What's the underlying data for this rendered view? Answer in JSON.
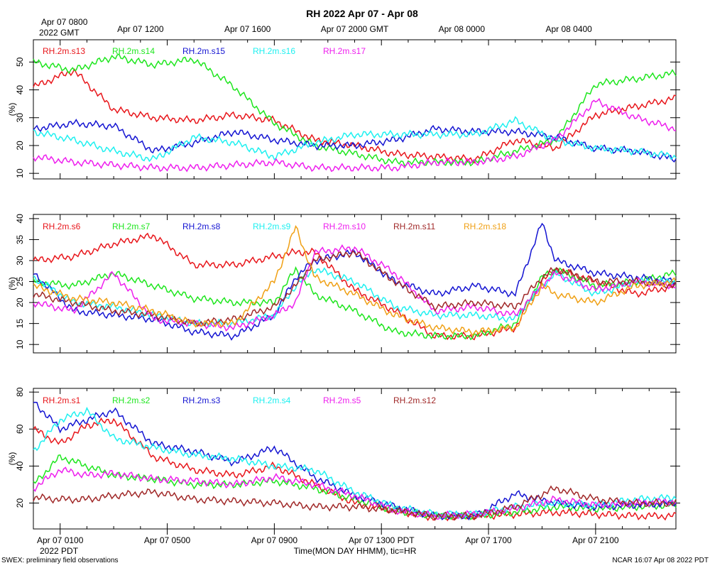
{
  "title": "RH 2022 Apr 07 - Apr 08",
  "top_axis": {
    "first_label": "Apr 07 0800",
    "first_label_sub": "2022 GMT",
    "labels": [
      "Apr 07 1200",
      "Apr 07 1600",
      "Apr 07 2000 GMT",
      "Apr 08 0000",
      "Apr 08 0400"
    ]
  },
  "bottom_axis": {
    "labels": [
      "Apr 07 0100",
      "Apr 07 0500",
      "Apr 07 0900",
      "Apr 07 1300 PDT",
      "Apr 07 1700",
      "Apr 07 2100"
    ],
    "first_label_sub": "2022 PDT",
    "xlabel": "Time(MON DAY HHMM), tic=HR"
  },
  "footer_left": "SWEX: preliminary field observations",
  "footer_right": "NCAR 16:07 Apr 08 2022 PDT",
  "colors": {
    "red": "#e8161b",
    "green": "#1ee61e",
    "blue": "#1414d2",
    "cyan": "#1ef0f0",
    "magenta": "#ee1eee",
    "brown": "#a02828",
    "orange": "#f0a014"
  },
  "chart_data": [
    {
      "type": "line",
      "title": "RH 2022 Apr 07 - Apr 08",
      "xlabel": "Time(MON DAY HHMM), tic=HR",
      "ylabel": "(%)",
      "x_hours": [
        0,
        1.5,
        3,
        4.5,
        6,
        7.5,
        9,
        10.5,
        12,
        13.5,
        15,
        16.5,
        18,
        19.5,
        21,
        22.5,
        24
      ],
      "xlim": [
        0,
        24
      ],
      "ylim": [
        8,
        58
      ],
      "yticks": [
        10,
        20,
        30,
        40,
        50
      ],
      "series": [
        {
          "name": "RH.2m.s13",
          "color": "red",
          "values": [
            41,
            47,
            33,
            30,
            29,
            31,
            29,
            22,
            20,
            17,
            16,
            15,
            22,
            19,
            31,
            34,
            37
          ]
        },
        {
          "name": "RH.2m.s14",
          "color": "green",
          "values": [
            50,
            47,
            52,
            49,
            51,
            41,
            28,
            20,
            17,
            14,
            14,
            14,
            18,
            22,
            42,
            44,
            46
          ]
        },
        {
          "name": "RH.2m.s15",
          "color": "blue",
          "values": [
            26,
            28,
            27,
            18,
            21,
            25,
            22,
            20,
            20,
            22,
            26,
            25,
            25,
            23,
            19,
            18,
            15
          ]
        },
        {
          "name": "RH.2m.s16",
          "color": "cyan",
          "values": [
            25,
            22,
            18,
            15,
            23,
            21,
            16,
            21,
            24,
            24,
            24,
            24,
            29,
            22,
            19,
            18,
            16
          ]
        },
        {
          "name": "RH.2m.s17",
          "color": "magenta",
          "values": [
            16,
            14,
            13,
            12,
            12,
            13,
            14,
            12,
            12,
            12,
            14,
            14,
            16,
            22,
            36,
            30,
            26
          ]
        }
      ]
    },
    {
      "type": "line",
      "ylabel": "(%)",
      "x_hours": [
        0,
        1.5,
        3,
        4.5,
        6,
        7.5,
        9,
        9.8,
        10.5,
        12,
        13.5,
        15,
        16.5,
        18,
        19,
        19.5,
        21,
        22.5,
        24
      ],
      "xlim": [
        0,
        24
      ],
      "ylim": [
        8,
        41
      ],
      "yticks": [
        10,
        15,
        20,
        25,
        30,
        35,
        40
      ],
      "series": [
        {
          "name": "RH.2m.s6",
          "color": "red",
          "values": [
            30,
            31,
            34,
            36,
            29,
            29,
            31,
            32,
            32,
            23,
            18,
            12,
            12,
            14,
            25,
            28,
            25,
            22,
            24
          ]
        },
        {
          "name": "RH.2m.s7",
          "color": "green",
          "values": [
            25,
            24,
            27,
            24,
            21,
            20,
            20,
            28,
            22,
            18,
            13,
            12,
            12,
            15,
            26,
            28,
            24,
            25,
            27
          ]
        },
        {
          "name": "RH.2m.s8",
          "color": "blue",
          "values": [
            27,
            18,
            17,
            16,
            13,
            12,
            17,
            26,
            30,
            32,
            25,
            22,
            24,
            22,
            39,
            30,
            27,
            26,
            25
          ]
        },
        {
          "name": "RH.2m.s9",
          "color": "cyan",
          "values": [
            26,
            20,
            19,
            17,
            15,
            15,
            17,
            24,
            28,
            25,
            19,
            17,
            17,
            16,
            24,
            27,
            22,
            25,
            25
          ]
        },
        {
          "name": "RH.2m.s10",
          "color": "magenta",
          "values": [
            20,
            18,
            27,
            16,
            15,
            14,
            17,
            20,
            32,
            33,
            27,
            18,
            19,
            17,
            24,
            27,
            23,
            25,
            24
          ]
        },
        {
          "name": "RH.2m.s11",
          "color": "brown",
          "values": [
            22,
            20,
            18,
            17,
            15,
            16,
            19,
            24,
            30,
            32,
            25,
            19,
            20,
            19,
            26,
            28,
            25,
            25,
            24
          ]
        },
        {
          "name": "RH.2m.s18",
          "color": "orange",
          "values": [
            24,
            21,
            20,
            18,
            15,
            15,
            25,
            38,
            26,
            22,
            17,
            14,
            13,
            14,
            24,
            22,
            20,
            24,
            25
          ]
        }
      ]
    },
    {
      "type": "line",
      "ylabel": "(%)",
      "x_hours": [
        0,
        1,
        2,
        3,
        4.5,
        6,
        7.5,
        9,
        10.5,
        12,
        13.5,
        15,
        16.5,
        18,
        19.5,
        21,
        22.5,
        24
      ],
      "xlim": [
        0,
        24
      ],
      "ylim": [
        6,
        82
      ],
      "yticks": [
        20,
        40,
        60,
        80
      ],
      "series": [
        {
          "name": "RH.2m.s1",
          "color": "red",
          "values": [
            60,
            52,
            62,
            65,
            45,
            38,
            35,
            40,
            30,
            20,
            16,
            12,
            13,
            14,
            15,
            14,
            13,
            13
          ]
        },
        {
          "name": "RH.2m.s2",
          "color": "green",
          "values": [
            30,
            45,
            40,
            35,
            33,
            30,
            30,
            32,
            28,
            22,
            16,
            13,
            13,
            15,
            18,
            17,
            18,
            19
          ]
        },
        {
          "name": "RH.2m.s3",
          "color": "blue",
          "values": [
            75,
            60,
            65,
            70,
            52,
            48,
            42,
            50,
            34,
            24,
            18,
            13,
            13,
            25,
            20,
            18,
            19,
            20
          ]
        },
        {
          "name": "RH.2m.s4",
          "color": "cyan",
          "values": [
            48,
            65,
            70,
            55,
            50,
            46,
            44,
            40,
            38,
            26,
            18,
            14,
            14,
            18,
            20,
            19,
            22,
            23
          ]
        },
        {
          "name": "RH.2m.s5",
          "color": "magenta",
          "values": [
            28,
            38,
            35,
            36,
            33,
            32,
            30,
            34,
            30,
            24,
            16,
            13,
            14,
            17,
            22,
            19,
            20,
            21
          ]
        },
        {
          "name": "RH.2m.s12",
          "color": "brown",
          "values": [
            23,
            22,
            22,
            24,
            26,
            22,
            21,
            20,
            18,
            18,
            16,
            13,
            13,
            18,
            28,
            22,
            20,
            20
          ]
        }
      ]
    }
  ]
}
